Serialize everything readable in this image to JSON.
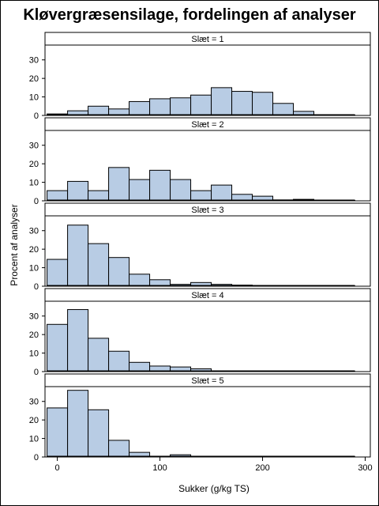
{
  "chart_data": {
    "type": "bar",
    "title": "Kløvergræsensilage, fordelingen af analyser",
    "xlabel": "Sukker (g/kg TS)",
    "ylabel": "Procent af analyser",
    "xlim": [
      -12,
      305
    ],
    "ylim": [
      0,
      38
    ],
    "x_ticks": [
      0,
      100,
      200,
      300
    ],
    "y_ticks": [
      0,
      10,
      20,
      30
    ],
    "bin_width": 20,
    "bin_starts": [
      -10,
      10,
      30,
      50,
      70,
      90,
      110,
      130,
      150,
      170,
      190,
      210,
      230,
      250,
      270
    ],
    "grid": false,
    "panels": [
      {
        "label": "Slæt = 1",
        "values": [
          0.8,
          2.5,
          5,
          3.5,
          7.5,
          9,
          9.5,
          11,
          15,
          13,
          12.5,
          6.5,
          2.2,
          0.3,
          0.2
        ]
      },
      {
        "label": "Slæt = 2",
        "values": [
          5.5,
          10.5,
          5.5,
          18,
          11.5,
          16.5,
          11.5,
          5.5,
          8.5,
          3.5,
          2.5,
          0.5,
          0.8,
          0.3,
          0.2
        ]
      },
      {
        "label": "Slæt = 3",
        "values": [
          14.5,
          33,
          23,
          15.5,
          6.5,
          3.5,
          1,
          2,
          1,
          0.6,
          0.2,
          0.1,
          0.1,
          0.1,
          0.1
        ]
      },
      {
        "label": "Slæt = 4",
        "values": [
          25.5,
          33.5,
          18,
          11,
          5,
          3,
          2.5,
          1.5,
          0.3,
          0.2,
          0.1,
          0.1,
          0.1,
          0.1,
          0.1
        ]
      },
      {
        "label": "Slæt = 5",
        "values": [
          26.5,
          36,
          25.5,
          9,
          2.5,
          0.3,
          1.2,
          0.1,
          0.1,
          0.1,
          0.1,
          0.1,
          0.1,
          0.1,
          0.1
        ]
      }
    ],
    "colors": {
      "bar_fill": "#b8cce4",
      "bar_stroke": "#000000",
      "header_fill": "#ffffff"
    }
  }
}
